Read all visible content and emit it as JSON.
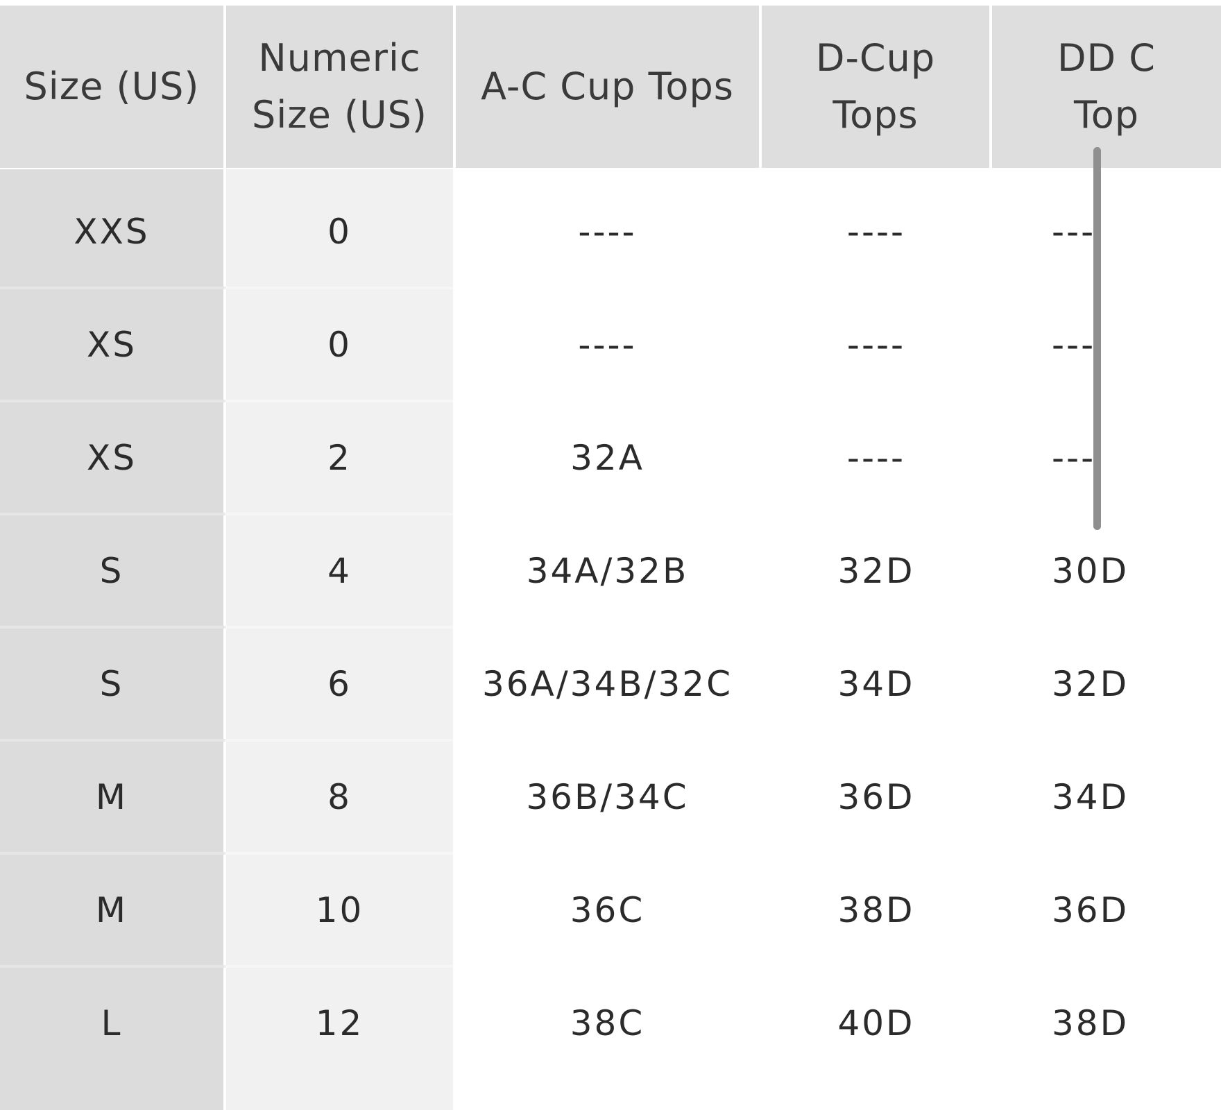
{
  "table": {
    "headers": [
      {
        "key": "size",
        "lines": [
          "Size (US)"
        ]
      },
      {
        "key": "numeric",
        "lines": [
          "Numeric",
          "Size (US)"
        ]
      },
      {
        "key": "ac",
        "lines": [
          "A-C Cup Tops"
        ]
      },
      {
        "key": "d",
        "lines": [
          "D-Cup",
          "Tops"
        ]
      },
      {
        "key": "dd",
        "lines": [
          "DD C",
          "Top"
        ]
      }
    ],
    "rows": [
      {
        "size": "XXS",
        "numeric": "0",
        "ac": "----",
        "d": "----",
        "dd": "---"
      },
      {
        "size": "XS",
        "numeric": "0",
        "ac": "----",
        "d": "----",
        "dd": "---"
      },
      {
        "size": "XS",
        "numeric": "2",
        "ac": "32A",
        "d": "----",
        "dd": "---"
      },
      {
        "size": "S",
        "numeric": "4",
        "ac": "34A/32B",
        "d": "32D",
        "dd": "30D"
      },
      {
        "size": "S",
        "numeric": "6",
        "ac": "36A/34B/32C",
        "d": "34D",
        "dd": "32D"
      },
      {
        "size": "M",
        "numeric": "8",
        "ac": "36B/34C",
        "d": "36D",
        "dd": "34D"
      },
      {
        "size": "M",
        "numeric": "10",
        "ac": "36C",
        "d": "38D",
        "dd": "36D"
      },
      {
        "size": "L",
        "numeric": "12",
        "ac": "38C",
        "d": "40D",
        "dd": "38D"
      }
    ]
  },
  "colors": {
    "header_bg": "#dedede",
    "size_col_bg": "#dcdcdc",
    "numeric_col_bg": "#f1f1f1",
    "text": "#2b2b2b",
    "scrollbar": "#8f8f8f"
  }
}
